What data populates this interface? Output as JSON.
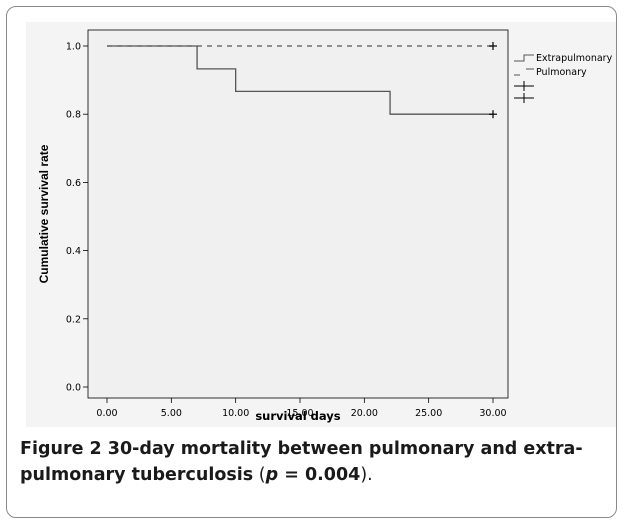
{
  "chart_data": {
    "type": "line",
    "subtype": "kaplan-meier step",
    "xlabel": "survival days",
    "ylabel": "Cumulative survival rate",
    "xlim": [
      0,
      30
    ],
    "ylim": [
      0,
      1
    ],
    "x_ticks": [
      "0.00",
      "5.00",
      "10.00",
      "15.00",
      "20.00",
      "25.00",
      "30.00"
    ],
    "x_tick_values": [
      0,
      5,
      10,
      15,
      20,
      25,
      30
    ],
    "y_ticks": [
      "0.0",
      "0.2",
      "0.4",
      "0.6",
      "0.8",
      "1.0"
    ],
    "y_tick_values": [
      0,
      0.2,
      0.4,
      0.6,
      0.8,
      1.0
    ],
    "grid": false,
    "legend_position": "right",
    "plot_background": "#f0f0f0",
    "series": [
      {
        "name": "Extrapulmonary",
        "style": "solid",
        "color": "#555555",
        "steps": [
          {
            "x": 0,
            "y": 1.0
          },
          {
            "x": 7,
            "y": 0.933
          },
          {
            "x": 10,
            "y": 0.867
          },
          {
            "x": 22,
            "y": 0.8
          }
        ],
        "end_x": 30,
        "censored": [
          {
            "x": 30,
            "y": 0.8
          }
        ]
      },
      {
        "name": "Pulmonary",
        "style": "dashed",
        "color": "#555555",
        "steps": [
          {
            "x": 0,
            "y": 1.0
          }
        ],
        "end_x": 30,
        "censored": [
          {
            "x": 30,
            "y": 1.0
          }
        ]
      }
    ],
    "legend_censor_marks": 2
  },
  "caption": {
    "label": "Figure 2",
    "text_a": " 30-day mortality between pulmonary and extra-",
    "text_b": "pulmonary tuberculosis",
    "text_c": " (",
    "p_symbol": "p",
    "p_value": " = 0.004",
    "text_d": ")."
  }
}
